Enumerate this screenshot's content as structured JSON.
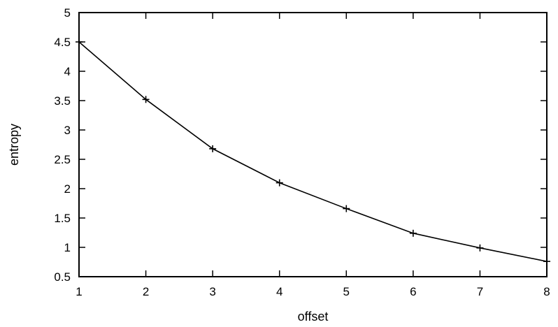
{
  "chart_data": {
    "type": "line",
    "title": "",
    "xlabel": "offset",
    "ylabel": "entropy",
    "xlim": [
      1,
      8
    ],
    "ylim": [
      0.5,
      5
    ],
    "xticks": [
      1,
      2,
      3,
      4,
      5,
      6,
      7,
      8
    ],
    "xtick_labels": [
      "1",
      "2",
      "3",
      "4",
      "5",
      "6",
      "7",
      "8"
    ],
    "yticks": [
      0.5,
      1,
      1.5,
      2,
      2.5,
      3,
      3.5,
      4,
      4.5,
      5
    ],
    "ytick_labels": [
      "0.5",
      "1",
      "1.5",
      "2",
      "2.5",
      "3",
      "3.5",
      "4",
      "4.5",
      "5"
    ],
    "grid": false,
    "legend": "none",
    "marker": "plus",
    "line_color": "#000000",
    "series": [
      {
        "x": [
          1,
          2,
          3,
          4,
          5,
          6,
          7,
          8
        ],
        "values": [
          4.5,
          3.52,
          2.68,
          2.1,
          1.66,
          1.24,
          0.99,
          0.76
        ]
      }
    ]
  }
}
